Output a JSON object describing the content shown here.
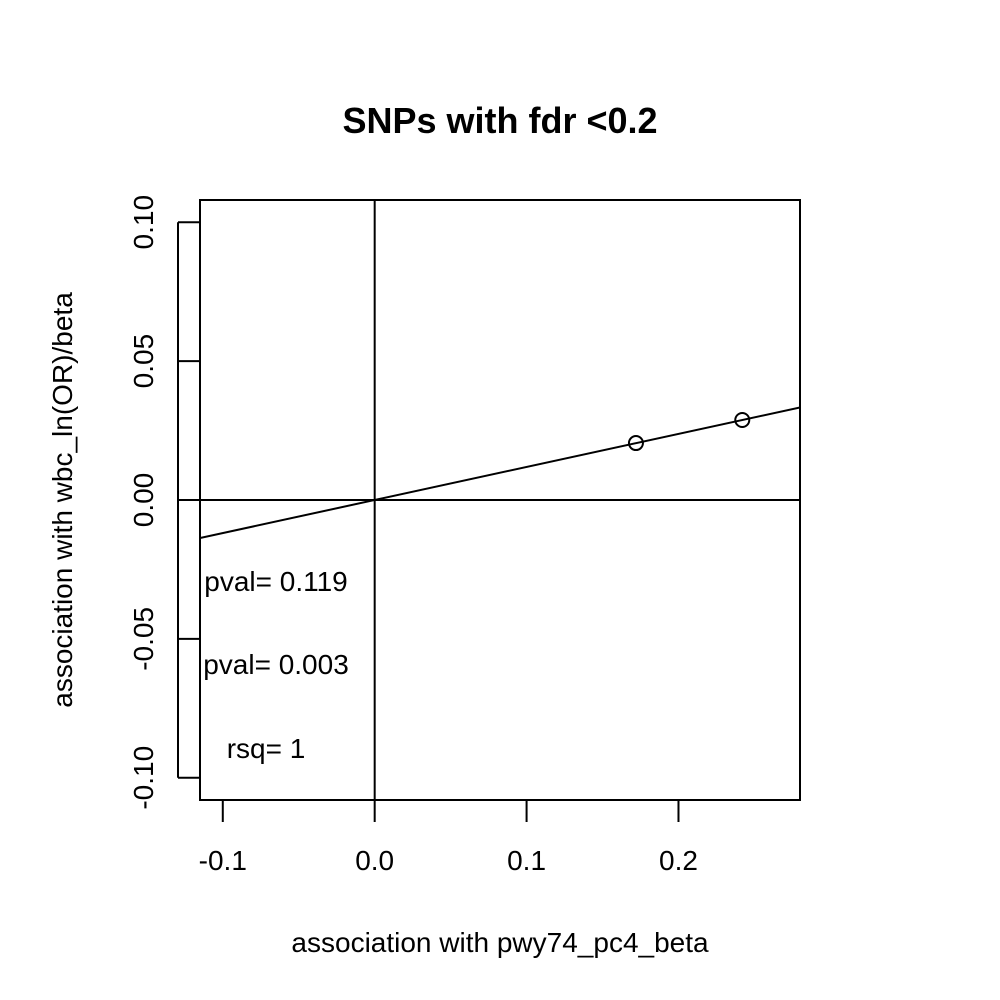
{
  "chart_data": {
    "type": "scatter",
    "title": "SNPs with fdr <0.2",
    "xlabel": "association with pwy74_pc4_beta",
    "ylabel": "association with wbc_ln(OR)/beta",
    "xlim": [
      -0.115,
      0.28
    ],
    "ylim": [
      -0.108,
      0.108
    ],
    "x_ticks": [
      "-0.1",
      "0.0",
      "0.1",
      "0.2"
    ],
    "y_ticks": [
      "-0.10",
      "-0.05",
      "0.00",
      "0.05",
      "0.10"
    ],
    "points": [
      {
        "x": 0.172,
        "y": 0.0205
      },
      {
        "x": 0.242,
        "y": 0.0288
      }
    ],
    "fit_line": {
      "intercept": 0.0,
      "slope": 0.119
    },
    "reference_lines": {
      "x": 0,
      "y": 0
    },
    "annotations": [
      "pval= 0.119",
      "pval= 0.003",
      "rsq= 1"
    ],
    "grid": false,
    "legend": "none"
  }
}
